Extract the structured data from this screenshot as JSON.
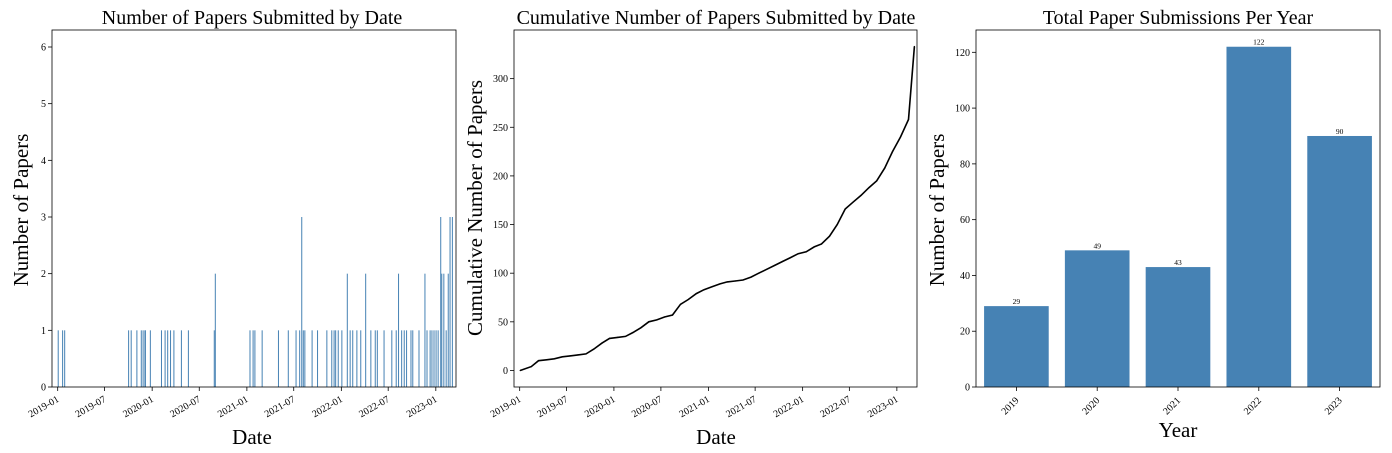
{
  "chart_data": [
    {
      "type": "bar",
      "title": "Number of Papers Submitted by Date",
      "xlabel": "Date",
      "ylabel": "Number of Papers",
      "ylim": [
        0,
        6.3
      ],
      "yticks": [
        0,
        1,
        2,
        3,
        4,
        5,
        6
      ],
      "xlim": [
        "2018-12-10",
        "2023-03-20"
      ],
      "xticks": [
        "2019-01",
        "2019-07",
        "2020-01",
        "2020-07",
        "2021-01",
        "2021-07",
        "2022-01",
        "2022-07",
        "2023-01"
      ],
      "color": "#4682b4",
      "x": [
        "2019-01-03",
        "2019-01-20",
        "2019-01-28",
        "2019-10-02",
        "2019-10-12",
        "2019-11-03",
        "2019-11-20",
        "2019-11-27",
        "2019-12-04",
        "2019-12-06",
        "2019-12-25",
        "2020-02-06",
        "2020-02-20",
        "2020-03-01",
        "2020-03-12",
        "2020-03-25",
        "2020-04-23",
        "2020-05-20",
        "2020-08-28",
        "2020-09-01",
        "2021-01-13",
        "2021-01-25",
        "2021-02-01",
        "2021-03-01",
        "2021-05-03",
        "2021-06-10",
        "2021-07-10",
        "2021-07-24",
        "2021-08-01",
        "2021-08-07",
        "2021-08-13",
        "2021-09-10",
        "2021-10-01",
        "2021-11-06",
        "2021-11-25",
        "2021-12-04",
        "2021-12-10",
        "2021-12-20",
        "2022-01-03",
        "2022-01-24",
        "2022-02-04",
        "2022-02-14",
        "2022-03-02",
        "2022-03-17",
        "2022-04-05",
        "2022-04-25",
        "2022-05-12",
        "2022-05-20",
        "2022-06-15",
        "2022-07-15",
        "2022-08-01",
        "2022-08-10",
        "2022-08-22",
        "2022-09-01",
        "2022-09-10",
        "2022-09-27",
        "2022-10-04",
        "2022-10-28",
        "2022-11-20",
        "2022-11-28",
        "2022-12-10",
        "2022-12-17",
        "2022-12-25",
        "2023-01-02",
        "2023-01-10",
        "2023-01-20",
        "2023-01-24",
        "2023-02-01",
        "2023-02-10",
        "2023-02-18",
        "2023-02-25",
        "2023-03-06"
      ],
      "values": [
        1,
        1,
        1,
        1,
        1,
        1,
        1,
        1,
        1,
        1,
        1,
        1,
        1,
        1,
        1,
        1,
        1,
        1,
        1,
        2,
        1,
        1,
        1,
        1,
        1,
        1,
        1,
        1,
        3,
        1,
        1,
        1,
        1,
        1,
        1,
        1,
        1,
        1,
        1,
        2,
        1,
        1,
        1,
        1,
        2,
        1,
        1,
        1,
        1,
        1,
        1,
        2,
        1,
        1,
        1,
        1,
        1,
        1,
        2,
        1,
        1,
        1,
        1,
        1,
        1,
        3,
        2,
        2,
        1,
        2,
        3,
        3
      ]
    },
    {
      "type": "line",
      "title": "Cumulative Number of Papers Submitted by Date",
      "xlabel": "Date",
      "ylabel": "Cumulative Number of Papers",
      "ylim": [
        -17,
        350
      ],
      "yticks": [
        0,
        50,
        100,
        150,
        200,
        250,
        300
      ],
      "xlim": [
        "2018-12-10",
        "2023-03-20"
      ],
      "xticks": [
        "2019-01",
        "2019-07",
        "2020-01",
        "2020-07",
        "2021-01",
        "2021-07",
        "2022-01",
        "2022-07",
        "2023-01"
      ],
      "color": "#000000",
      "x": [
        "2019-01-03",
        "2019-02-15",
        "2019-03-15",
        "2019-04-15",
        "2019-05-15",
        "2019-06-15",
        "2019-07-15",
        "2019-08-15",
        "2019-09-15",
        "2019-10-15",
        "2019-11-15",
        "2019-12-15",
        "2020-01-15",
        "2020-02-15",
        "2020-03-15",
        "2020-04-15",
        "2020-05-15",
        "2020-06-15",
        "2020-07-15",
        "2020-08-15",
        "2020-09-15",
        "2020-10-15",
        "2020-11-15",
        "2020-12-15",
        "2021-01-15",
        "2021-02-15",
        "2021-03-15",
        "2021-04-15",
        "2021-05-15",
        "2021-06-15",
        "2021-07-15",
        "2021-08-15",
        "2021-09-15",
        "2021-10-15",
        "2021-11-15",
        "2021-12-15",
        "2022-01-15",
        "2022-02-15",
        "2022-03-15",
        "2022-04-15",
        "2022-05-15",
        "2022-06-15",
        "2022-07-15",
        "2022-08-15",
        "2022-09-15",
        "2022-10-15",
        "2022-11-15",
        "2022-12-15",
        "2023-01-15",
        "2023-02-15",
        "2023-03-10"
      ],
      "values": [
        0,
        4,
        10,
        11,
        12,
        14,
        15,
        16,
        17,
        22,
        28,
        33,
        34,
        35,
        39,
        44,
        50,
        52,
        55,
        57,
        68,
        73,
        79,
        83,
        86,
        89,
        91,
        92,
        93,
        96,
        100,
        104,
        108,
        112,
        116,
        120,
        122,
        127,
        130,
        138,
        150,
        166,
        173,
        180,
        188,
        195,
        208,
        225,
        240,
        258,
        333
      ]
    },
    {
      "type": "bar",
      "title": "Total Paper Submissions Per Year",
      "xlabel": "Year",
      "ylabel": "Number of Papers",
      "ylim": [
        0,
        128
      ],
      "yticks": [
        0,
        20,
        40,
        60,
        80,
        100,
        120
      ],
      "color": "#4682b4",
      "categories": [
        "2019",
        "2020",
        "2021",
        "2022",
        "2023"
      ],
      "values": [
        29,
        49,
        43,
        122,
        90
      ],
      "data_labels": [
        "29",
        "49",
        "43",
        "122",
        "90"
      ]
    }
  ]
}
